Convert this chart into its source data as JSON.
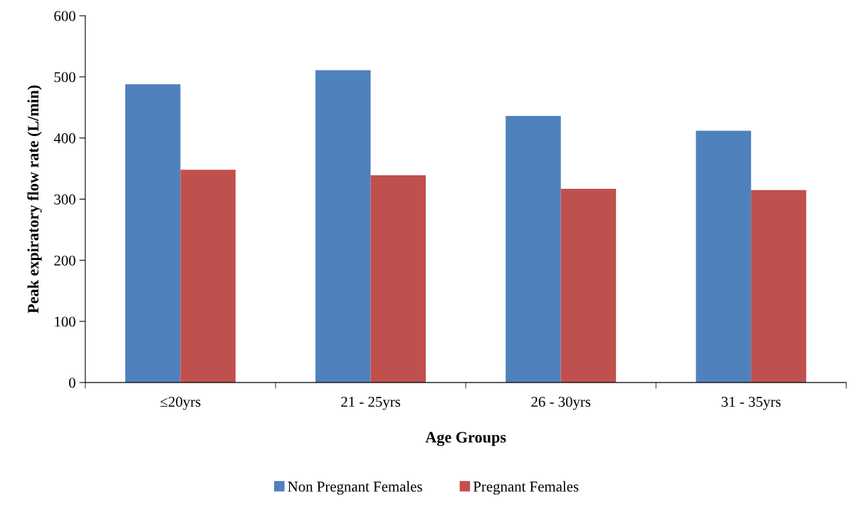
{
  "chart_data": {
    "type": "bar",
    "xlabel": "Age Groups",
    "ylabel": "Peak expiratory flow rate (L/min)",
    "categories": [
      "≤20yrs",
      "21 - 25yrs",
      "26 - 30yrs",
      "31 - 35yrs"
    ],
    "series": [
      {
        "name": "Non Pregnant Females",
        "color": "#4f81bd",
        "values": [
          488,
          511,
          436,
          412
        ]
      },
      {
        "name": "Pregnant Females",
        "color": "#c0504d",
        "values": [
          348,
          339,
          317,
          315
        ]
      }
    ],
    "ylim": [
      0,
      600
    ],
    "yticks": [
      0,
      100,
      200,
      300,
      400,
      500,
      600
    ],
    "grid": false,
    "legend": "bottom"
  }
}
